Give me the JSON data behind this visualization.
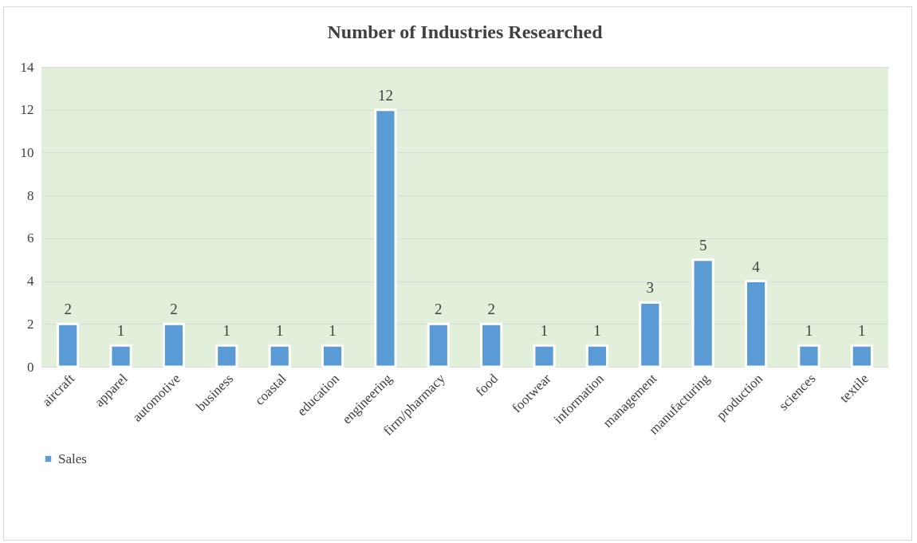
{
  "chart_data": {
    "type": "bar",
    "title": "Number of Industries Researched",
    "categories": [
      "aircraft",
      "apparel",
      "automotive",
      "business",
      "coastal",
      "education",
      "engineering",
      "firm/pharmacy",
      "food",
      "footwear",
      "information",
      "management",
      "manufacturing",
      "production",
      "sciences",
      "textile"
    ],
    "series": [
      {
        "name": "Sales",
        "color": "#5b9bd5",
        "values": [
          2,
          1,
          2,
          1,
          1,
          1,
          12,
          2,
          2,
          1,
          1,
          3,
          5,
          4,
          1,
          1
        ]
      }
    ],
    "ylim": [
      0,
      14
    ],
    "yticks": [
      0,
      2,
      4,
      6,
      8,
      10,
      12,
      14
    ],
    "grid": "y",
    "data_labels": true,
    "legend": "bottom"
  }
}
